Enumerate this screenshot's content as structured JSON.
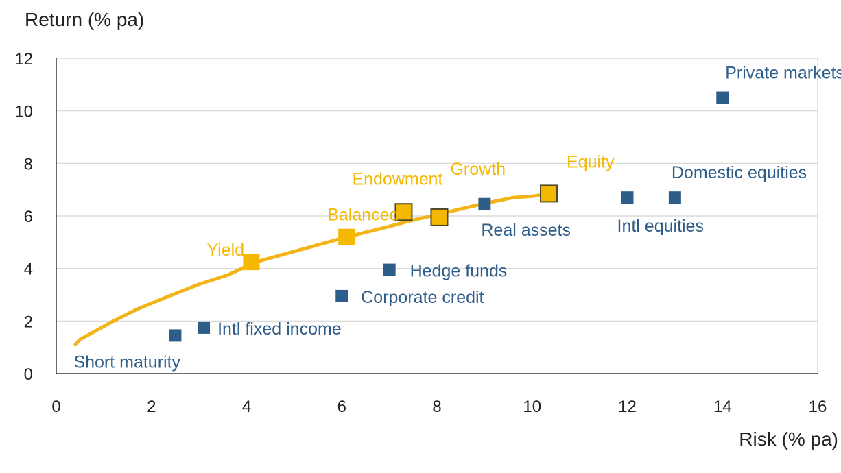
{
  "chart_data": {
    "type": "scatter",
    "ylabel": "Return (% pa)",
    "xlabel": "Risk (% pa)",
    "xlim": [
      0,
      16
    ],
    "ylim": [
      0,
      12
    ],
    "xticks": [
      "0",
      "2",
      "4",
      "6",
      "8",
      "10",
      "12",
      "14",
      "16"
    ],
    "yticks": [
      "0",
      "2",
      "4",
      "6",
      "8",
      "10",
      "12"
    ],
    "grid": "horizontal",
    "colors": {
      "portfolio": "#F5B800",
      "portfolio_edge": "#4a4a2a",
      "asset": "#2F5D8A",
      "curve": "#F2B417",
      "grid": "#d4d4d4",
      "axis": "#3a3a3a"
    },
    "frontier_curve": {
      "x": [
        0.4,
        0.5,
        0.8,
        1.2,
        1.7,
        2.3,
        3.0,
        3.6,
        4.2,
        5.0,
        6.0,
        7.0,
        7.4,
        8.0,
        8.7,
        9.2,
        9.6,
        10.0,
        10.4
      ],
      "y": [
        1.1,
        1.3,
        1.6,
        2.0,
        2.45,
        2.9,
        3.4,
        3.75,
        4.25,
        4.65,
        5.15,
        5.6,
        5.8,
        6.05,
        6.35,
        6.55,
        6.7,
        6.75,
        6.85
      ]
    },
    "portfolios": [
      {
        "name": "Yield",
        "x": 4.1,
        "y": 4.25,
        "outlined": false
      },
      {
        "name": "Balanced",
        "x": 6.1,
        "y": 5.2,
        "outlined": false
      },
      {
        "name": "Endowment",
        "x": 7.3,
        "y": 6.15,
        "outlined": true
      },
      {
        "name": "Growth",
        "x": 8.05,
        "y": 5.95,
        "outlined": true
      },
      {
        "name": "Equity",
        "x": 10.35,
        "y": 6.85,
        "outlined": true
      }
    ],
    "assets": [
      {
        "name": "Short maturity",
        "x": 2.5,
        "y": 1.45
      },
      {
        "name": "Intl fixed income",
        "x": 3.1,
        "y": 1.75
      },
      {
        "name": "Corporate credit",
        "x": 6.0,
        "y": 2.95
      },
      {
        "name": "Hedge funds",
        "x": 7.0,
        "y": 3.95
      },
      {
        "name": "Real assets",
        "x": 9.0,
        "y": 6.45
      },
      {
        "name": "Intl equities",
        "x": 12.0,
        "y": 6.7
      },
      {
        "name": "Domestic equities",
        "x": 13.0,
        "y": 6.7
      },
      {
        "name": "Private markets",
        "x": 14.0,
        "y": 10.5
      }
    ]
  }
}
